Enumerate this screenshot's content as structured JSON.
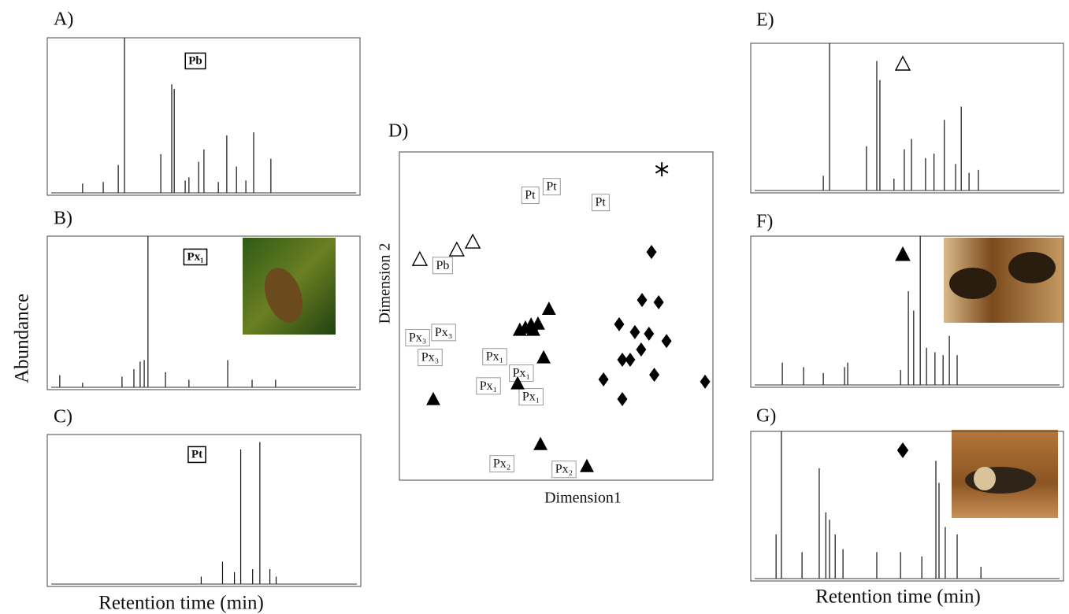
{
  "chart_data": [
    {
      "type": "stem",
      "label": "A)",
      "tag": "Pb",
      "xlim": [
        0,
        100
      ],
      "ylim": [
        0,
        100
      ],
      "x": [
        11.3,
        17.9,
        22.7,
        24.7,
        36.3,
        39.8,
        40.6,
        44.1,
        45.3,
        48.4,
        50.1,
        54.7,
        57.4,
        60.5,
        63.5,
        66.0,
        71.5
      ],
      "values": [
        6,
        7,
        18,
        100,
        25,
        70,
        67,
        8,
        10,
        20,
        28,
        7,
        37,
        17,
        8,
        39,
        22
      ]
    },
    {
      "type": "stem",
      "label": "B)",
      "tag": "Px₁",
      "ylabel": "Abundance",
      "xlim": [
        0,
        100
      ],
      "ylim": [
        0,
        100
      ],
      "x": [
        4.0,
        11.3,
        23.9,
        27.7,
        29.7,
        31.0,
        32.2,
        37.8,
        45.3,
        57.7,
        65.5,
        73.0
      ],
      "values": [
        8,
        3,
        7,
        12,
        17,
        18,
        100,
        10,
        5,
        18,
        5,
        5
      ]
    },
    {
      "type": "stem",
      "label": "C)",
      "tag": "Pt",
      "xlabel": "Retention time (min)",
      "xlim": [
        0,
        100
      ],
      "ylim": [
        0,
        100
      ],
      "x": [
        49.1,
        55.9,
        59.7,
        61.7,
        65.5,
        67.8,
        71.0,
        73.0
      ],
      "values": [
        5,
        15,
        8,
        90,
        10,
        95,
        10,
        5
      ]
    },
    {
      "type": "scatter",
      "label": "D)",
      "xlabel": "Dimension1",
      "ylabel": "Dimension 2",
      "xlim": [
        0,
        100
      ],
      "ylim": [
        0,
        100
      ],
      "series": [
        {
          "marker": "box",
          "label": "Pt",
          "x": [
            41.7,
            48.5,
            64.1
          ],
          "values": [
            86.6,
            89.2,
            84.4
          ]
        },
        {
          "marker": "box",
          "label": "Pb",
          "x": [
            13.8
          ],
          "values": [
            65.2
          ]
        },
        {
          "marker": "open-triangle",
          "x": [
            6.5,
            18.3,
            23.4
          ],
          "values": [
            67.1,
            70.0,
            72.4
          ]
        },
        {
          "marker": "box",
          "label": "Px₃",
          "x": [
            5.8,
            14.1,
            9.8
          ],
          "values": [
            43.2,
            44.8,
            37.2
          ]
        },
        {
          "marker": "box",
          "label": "Px₁",
          "x": [
            30.4,
            38.9,
            28.4,
            42.0
          ],
          "values": [
            37.4,
            32.4,
            28.5,
            25.2
          ]
        },
        {
          "marker": "box",
          "label": "Px₂",
          "x": [
            32.7,
            52.5
          ],
          "values": [
            4.8,
            3.1
          ]
        },
        {
          "marker": "triangle",
          "x": [
            10.8,
            47.7,
            46.0,
            37.7,
            45.0,
            59.8,
            38.4,
            40.2,
            42.0,
            44.2,
            42.7
          ],
          "values": [
            24.5,
            52.0,
            37.2,
            29.3,
            10.8,
            4.1,
            45.6,
            46.3,
            47.2,
            47.5,
            45.6
          ]
        },
        {
          "marker": "diamond",
          "x": [
            80.4,
            77.4,
            82.7,
            70.1,
            75.1,
            79.6,
            85.2,
            71.1,
            73.6,
            77.1,
            65.1,
            81.3,
            97.5,
            71.1
          ],
          "values": [
            69.5,
            54.9,
            54.2,
            47.5,
            45.1,
            44.6,
            42.4,
            36.7,
            36.7,
            39.8,
            30.7,
            32.1,
            30.0,
            24.7
          ]
        },
        {
          "marker": "asterisk",
          "x": [
            83.7
          ],
          "values": [
            94.7
          ]
        }
      ]
    },
    {
      "type": "stem",
      "label": "E)",
      "symbol": "open-triangle",
      "xlim": [
        0,
        100
      ],
      "ylim": [
        0,
        100
      ],
      "x": [
        23.2,
        25.2,
        37.0,
        40.3,
        41.3,
        45.8,
        49.1,
        51.4,
        55.9,
        58.6,
        61.9,
        65.5,
        67.3,
        69.8,
        72.8
      ],
      "values": [
        10,
        100,
        30,
        88,
        75,
        8,
        28,
        35,
        22,
        25,
        48,
        18,
        57,
        12,
        14
      ]
    },
    {
      "type": "stem",
      "label": "F)",
      "symbol": "triangle",
      "xlim": [
        0,
        100
      ],
      "ylim": [
        0,
        100
      ],
      "x": [
        10.1,
        16.9,
        23.2,
        30.0,
        31.0,
        47.9,
        50.4,
        52.1,
        54.2,
        56.2,
        58.9,
        61.5,
        63.5,
        66.0
      ],
      "values": [
        15,
        12,
        8,
        12,
        15,
        10,
        63,
        50,
        100,
        25,
        22,
        20,
        33,
        20
      ]
    },
    {
      "type": "stem",
      "label": "G)",
      "symbol": "diamond",
      "xlabel": "Retention time (min)",
      "xlim": [
        0,
        100
      ],
      "ylim": [
        0,
        100
      ],
      "x": [
        8.1,
        9.8,
        16.4,
        21.9,
        24.0,
        25.2,
        27.0,
        29.5,
        40.3,
        47.9,
        54.7,
        59.2,
        60.2,
        62.2,
        66.0,
        73.6
      ],
      "values": [
        30,
        100,
        18,
        75,
        45,
        40,
        30,
        20,
        18,
        18,
        15,
        80,
        65,
        35,
        30,
        8
      ]
    }
  ]
}
